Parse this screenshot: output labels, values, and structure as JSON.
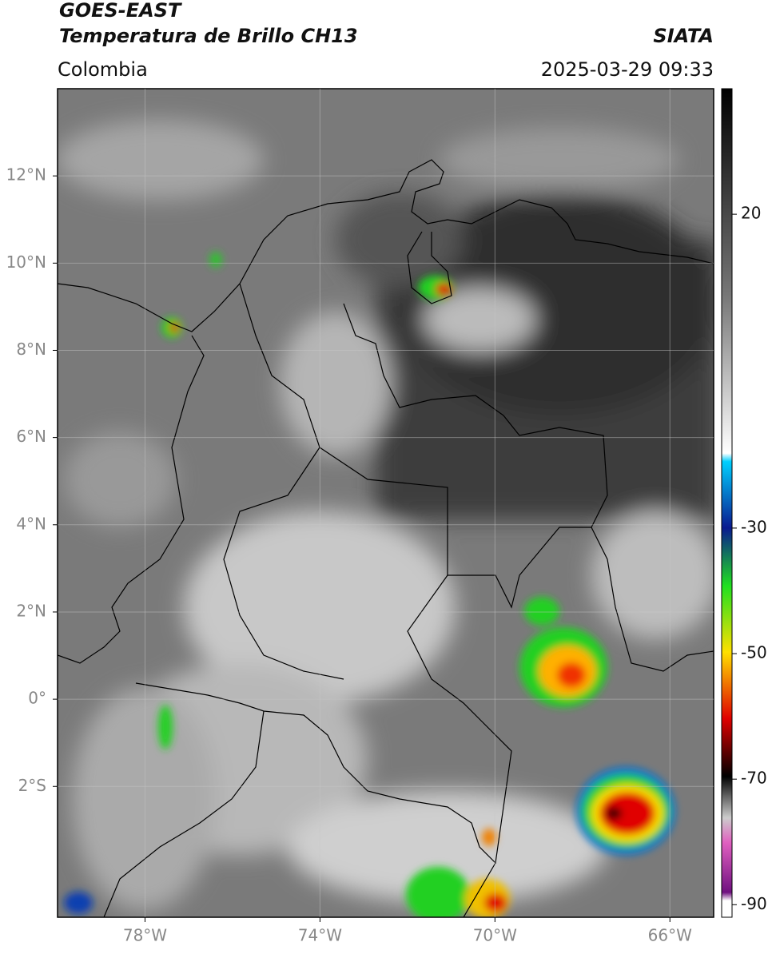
{
  "header": {
    "satellite": "GOES-EAST",
    "product": "Temperatura de Brillo CH13",
    "region": "Colombia",
    "source": "SIATA",
    "datetime": "2025-03-29 09:33"
  },
  "map": {
    "xlim": [
      -80,
      -65
    ],
    "ylim": [
      -5,
      14
    ],
    "xticks": [
      {
        "value": -78,
        "label": "78°W"
      },
      {
        "value": -74,
        "label": "74°W"
      },
      {
        "value": -70,
        "label": "70°W"
      },
      {
        "value": -66,
        "label": "66°W"
      }
    ],
    "yticks": [
      {
        "value": 12,
        "label": "12°N"
      },
      {
        "value": 10,
        "label": "10°N"
      },
      {
        "value": 8,
        "label": "8°N"
      },
      {
        "value": 6,
        "label": "6°N"
      },
      {
        "value": 4,
        "label": "4°N"
      },
      {
        "value": 2,
        "label": "2°N"
      },
      {
        "value": 0,
        "label": "0°"
      },
      {
        "value": -2,
        "label": "2°S"
      }
    ],
    "grid": true
  },
  "colorbar": {
    "lim": [
      -92,
      40
    ],
    "ticks": [
      20,
      -30,
      -50,
      -70,
      -90
    ]
  }
}
